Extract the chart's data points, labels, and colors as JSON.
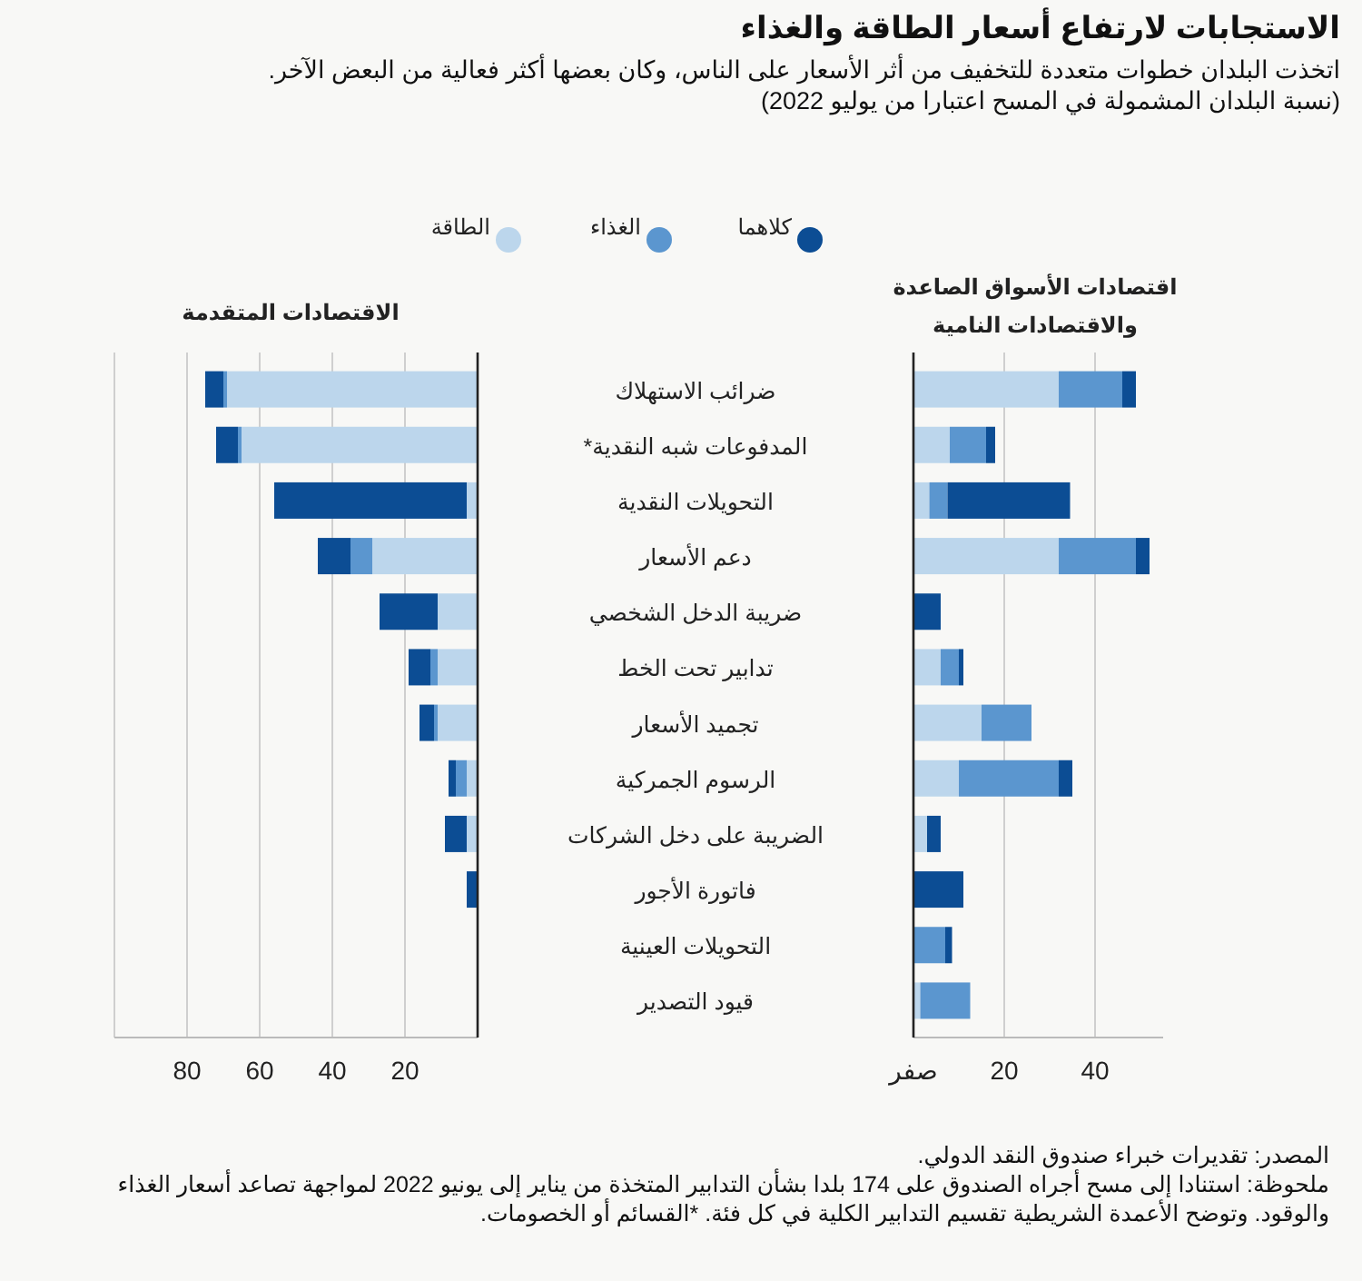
{
  "chart_data": [
    {
      "type": "bar",
      "orientation": "horizontal",
      "stacked": true,
      "title": "الاستجابات لارتفاع أسعار الطاقة والغذاء",
      "subtitle": "اتخذت البلدان خطوات متعددة للتخفيف من أثر الأسعار على الناس، وكان بعضها أكثر فعالية من البعض الآخر.\n(نسبة البلدان المشمولة في المسح اعتبارا من يوليو 2022)",
      "annotations": [
        "الاقتصادات المتقدمة",
        "المصدر: تقديرات خبراء صندوق النقد الدولي.",
        "ملحوظة: استنادا إلى مسح أجراه الصندوق على 174 بلدا بشأن التدابير المتخذة من يناير إلى يونيو 2022 لمواجهة تصاعد أسعار الغذاء والوقود. وتوضح الأعمدة الشريطية تقسيم التدابير الكلية في كل فئة. *القسائم أو الخصومات."
      ],
      "categories": [
        "ضرائب الاستهلاك",
        "المدفوعات شبه النقدية*",
        "التحويلات النقدية",
        "دعم الأسعار",
        "ضريبة الدخل الشخصي",
        "تدابير تحت الخط",
        "تجميد الأسعار",
        "الرسوم الجمركية",
        "الضريبة على دخل الشركات",
        "فاتورة الأجور",
        "التحويلات العينية",
        "قيود التصدير"
      ],
      "series": [
        {
          "name": "الطاقة",
          "color": "#bcd6ec",
          "values": [
            69,
            65,
            3,
            29,
            11,
            11,
            11,
            3,
            3,
            0,
            0,
            0
          ]
        },
        {
          "name": "الغذاء",
          "color": "#5b96cf",
          "values": [
            1,
            1,
            0,
            6,
            0,
            2,
            1,
            3,
            0,
            0,
            0,
            0
          ]
        },
        {
          "name": "كلاهما",
          "color": "#0c4d94",
          "values": [
            5,
            6,
            53,
            9,
            16,
            6,
            4,
            2,
            6,
            3,
            0,
            0
          ]
        }
      ],
      "xlim": [
        100,
        0
      ],
      "xticks": [
        {
          "value": 100,
          "label": null
        },
        20,
        40,
        60,
        80
      ],
      "grid": "x",
      "legend": "top"
    },
    {
      "type": "bar",
      "orientation": "horizontal",
      "stacked": true,
      "title": "اقتصادات الأسواق الصاعدة\nوالاقتصادات النامية",
      "categories": [
        null,
        null,
        null,
        null,
        null,
        null,
        null,
        null,
        null,
        null,
        null,
        null
      ],
      "series": [
        {
          "color": "#bcd6ec",
          "values": [
            32,
            8,
            3.5,
            32,
            0,
            6,
            15,
            10,
            3,
            0,
            0,
            1.5
          ]
        },
        {
          "color": "#5b96cf",
          "values": [
            14,
            8,
            4,
            17,
            0,
            4,
            11,
            22,
            0,
            0,
            7,
            11
          ]
        },
        {
          "color": "#0c4d94",
          "values": [
            3,
            2,
            27,
            3,
            6,
            1,
            0,
            3,
            3,
            11,
            1.5,
            0
          ]
        }
      ],
      "xlim": [
        0,
        55
      ],
      "xticks": [
        {
          "value": 0,
          "label": "صفر"
        },
        20,
        40
      ],
      "grid": "x",
      "tick_labels": "x"
    }
  ]
}
